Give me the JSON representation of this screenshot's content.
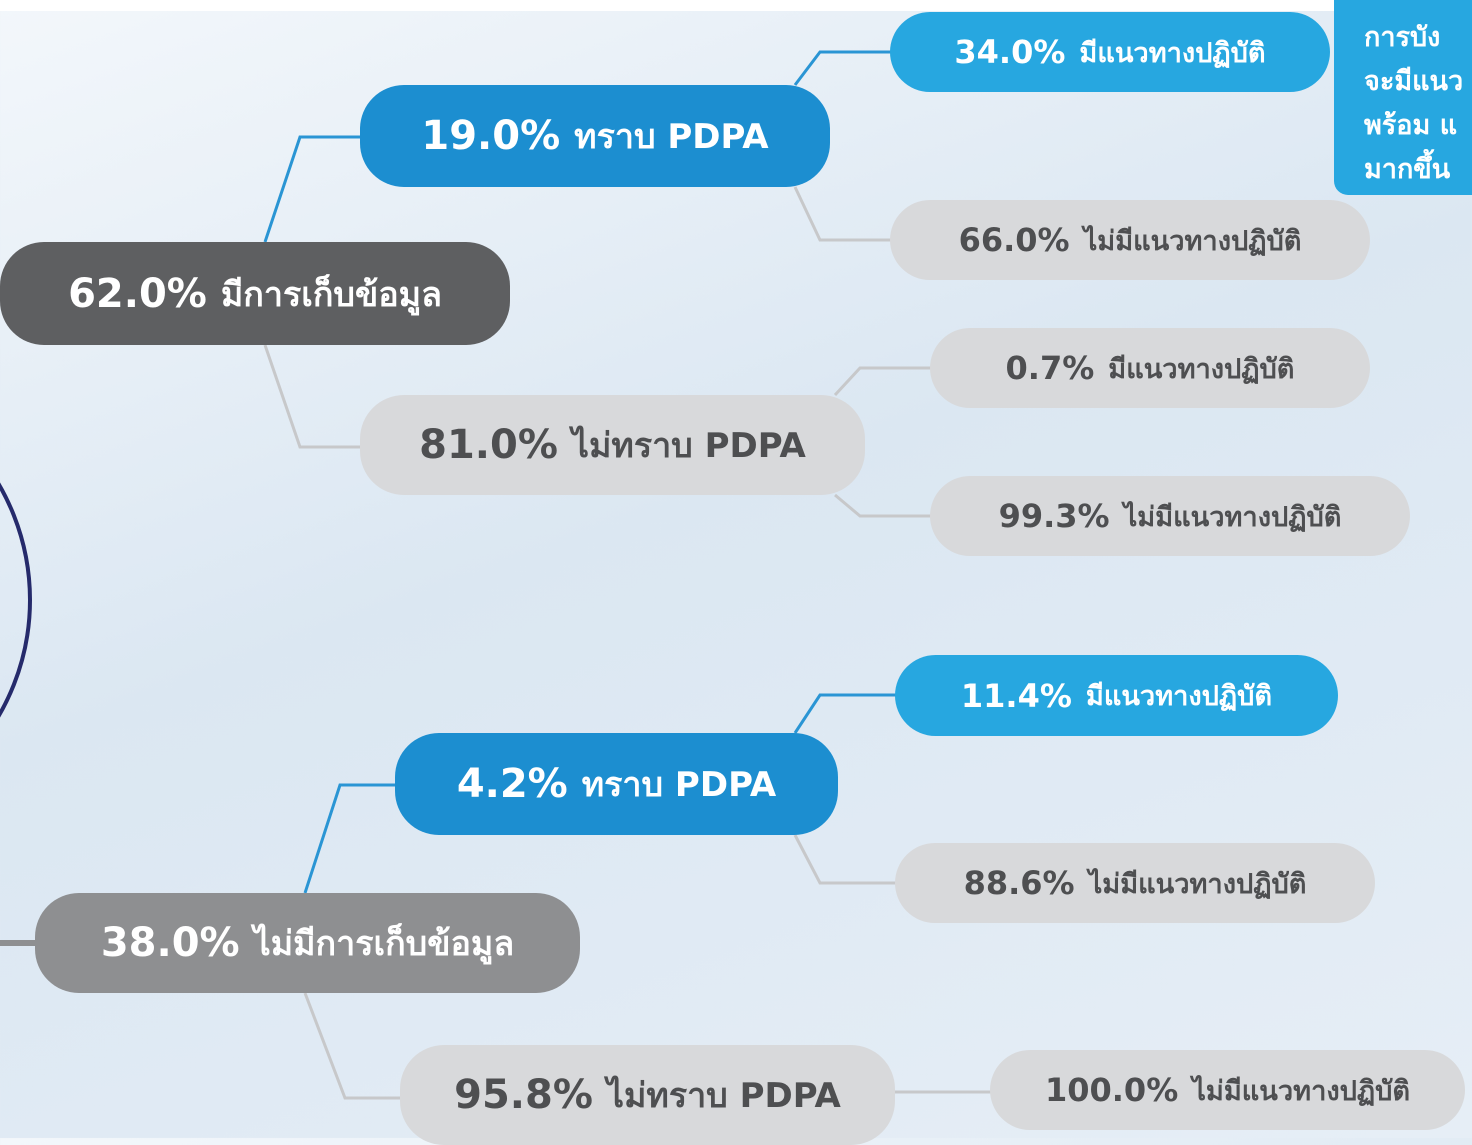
{
  "nodes": [
    {
      "value": "62.0%",
      "label": "มีการเก็บข้อมูล"
    },
    {
      "value": "19.0%",
      "label": "ทราบ PDPA"
    },
    {
      "value": "81.0%",
      "label": "ไม่ทราบ PDPA"
    },
    {
      "value": "34.0%",
      "label": "มีแนวทางปฏิบัติ"
    },
    {
      "value": "66.0%",
      "label": "ไม่มีแนวทางปฏิบัติ"
    },
    {
      "value": "0.7%",
      "label": "มีแนวทางปฏิบัติ"
    },
    {
      "value": "99.3%",
      "label": "ไม่มีแนวทางปฏิบัติ"
    },
    {
      "value": "38.0%",
      "label": "ไม่มีการเก็บข้อมูล"
    },
    {
      "value": "4.2%",
      "label": "ทราบ PDPA"
    },
    {
      "value": "95.8%",
      "label": "ไม่ทราบ PDPA"
    },
    {
      "value": "11.4%",
      "label": "มีแนวทางปฏิบัติ"
    },
    {
      "value": "88.6%",
      "label": "ไม่มีแนวทางปฏิบัติ"
    },
    {
      "value": "100.0%",
      "label": "ไม่มีแนวทางปฏิบัติ"
    }
  ],
  "note": {
    "lines": [
      "การบัง",
      "จะมีแนว",
      "พร้อม แ",
      "มากขึ้น"
    ]
  }
}
